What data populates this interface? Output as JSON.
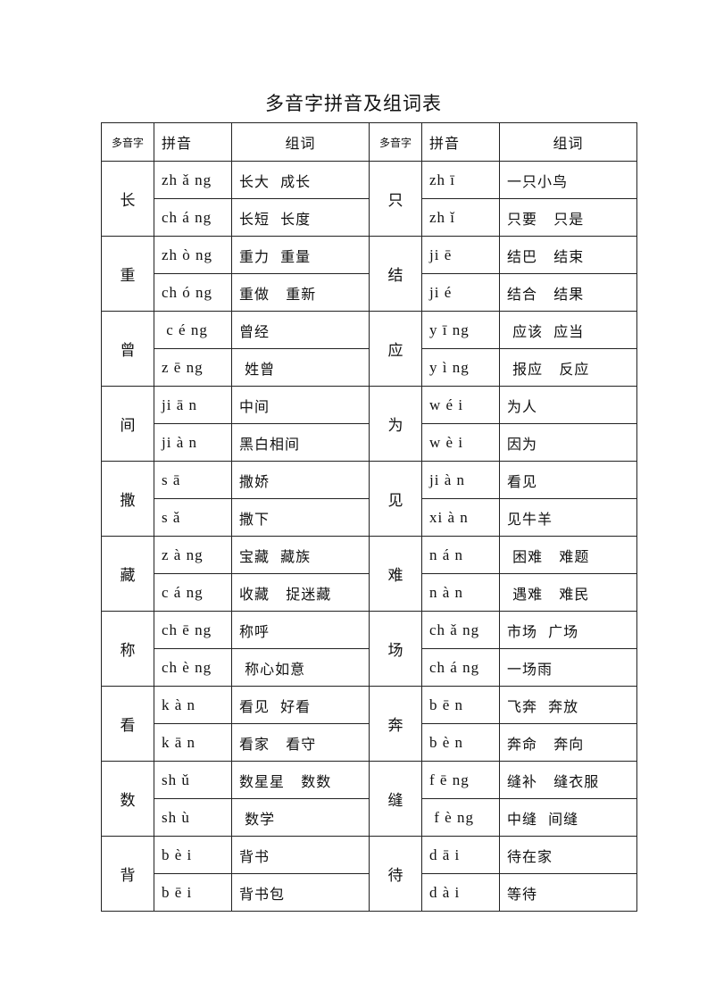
{
  "title": "多音字拼音及组词表",
  "headers": {
    "char": "多音字",
    "pinyin": "拼音",
    "words": "组词"
  },
  "groups": [
    {
      "left": {
        "char": "长",
        "rows": [
          {
            "py": "zh ǎ ng",
            "w": "长大  成长"
          },
          {
            "py": "ch á ng",
            "w": "长短  长度"
          }
        ]
      },
      "right": {
        "char": "只",
        "rows": [
          {
            "py": "zh ī",
            "w": "一只小鸟"
          },
          {
            "py": "zh ǐ",
            "w": "只要   只是"
          }
        ]
      }
    },
    {
      "left": {
        "char": "重",
        "rows": [
          {
            "py": "zh ò ng",
            "w": "重力  重量"
          },
          {
            "py": "ch ó ng",
            "w": "重做   重新"
          }
        ]
      },
      "right": {
        "char": "结",
        "rows": [
          {
            "py": "ji ē",
            "w": "结巴   结束"
          },
          {
            "py": "ji é",
            "w": "结合   结果"
          }
        ]
      }
    },
    {
      "left": {
        "char": "曾",
        "rows": [
          {
            "py": " c é ng",
            "w": "曾经"
          },
          {
            "py": "z ē ng",
            "w": " 姓曾"
          }
        ]
      },
      "right": {
        "char": "应",
        "rows": [
          {
            "py": "y ī ng",
            "w": " 应该  应当"
          },
          {
            "py": "y ì ng",
            "w": " 报应   反应"
          }
        ]
      }
    },
    {
      "left": {
        "char": "间",
        "rows": [
          {
            "py": "ji ā n",
            "w": "中间"
          },
          {
            "py": "ji à n",
            "w": "黑白相间"
          }
        ]
      },
      "right": {
        "char": "为",
        "rows": [
          {
            "py": "w é i",
            "w": "为人"
          },
          {
            "py": "w è i",
            "w": "因为"
          }
        ]
      }
    },
    {
      "left": {
        "char": "撒",
        "rows": [
          {
            "py": "s ā",
            "w": "撒娇"
          },
          {
            "py": "s ǎ",
            "w": "撒下"
          }
        ]
      },
      "right": {
        "char": "见",
        "rows": [
          {
            "py": "ji à n",
            "w": "看见"
          },
          {
            "py": "xi à n",
            "w": "见牛羊"
          }
        ]
      }
    },
    {
      "left": {
        "char": "藏",
        "rows": [
          {
            "py": "z à ng",
            "w": "宝藏  藏族"
          },
          {
            "py": "c á ng",
            "w": "收藏   捉迷藏"
          }
        ]
      },
      "right": {
        "char": "难",
        "rows": [
          {
            "py": "n á n",
            "w": " 困难   难题"
          },
          {
            "py": "n à n",
            "w": " 遇难   难民"
          }
        ]
      }
    },
    {
      "left": {
        "char": "称",
        "rows": [
          {
            "py": "ch ē ng",
            "w": "称呼"
          },
          {
            "py": "ch è ng",
            "w": " 称心如意"
          }
        ]
      },
      "right": {
        "char": "场",
        "rows": [
          {
            "py": "ch ǎ ng",
            "w": "市场  广场"
          },
          {
            "py": "ch á ng",
            "w": "一场雨"
          }
        ]
      }
    },
    {
      "left": {
        "char": "看",
        "rows": [
          {
            "py": "k à n",
            "w": "看见  好看"
          },
          {
            "py": "k ā n",
            "w": "看家   看守"
          }
        ]
      },
      "right": {
        "char": "奔",
        "rows": [
          {
            "py": "b ē n",
            "w": "飞奔  奔放"
          },
          {
            "py": "b è n",
            "w": "奔命   奔向"
          }
        ]
      }
    },
    {
      "left": {
        "char": "数",
        "rows": [
          {
            "py": "sh ǔ",
            "w": "数星星   数数"
          },
          {
            "py": "sh ù",
            "w": " 数学"
          }
        ]
      },
      "right": {
        "char": "缝",
        "rows": [
          {
            "py": "f ē ng",
            "w": "缝补   缝衣服"
          },
          {
            "py": " f è ng",
            "w": "中缝  间缝"
          }
        ]
      }
    },
    {
      "left": {
        "char": "背",
        "rows": [
          {
            "py": "b è i",
            "w": "背书"
          },
          {
            "py": "b ē i",
            "w": "背书包"
          }
        ]
      },
      "right": {
        "char": "待",
        "rows": [
          {
            "py": "d ā i",
            "w": "待在家"
          },
          {
            "py": "d à i",
            "w": "等待"
          }
        ]
      }
    }
  ]
}
